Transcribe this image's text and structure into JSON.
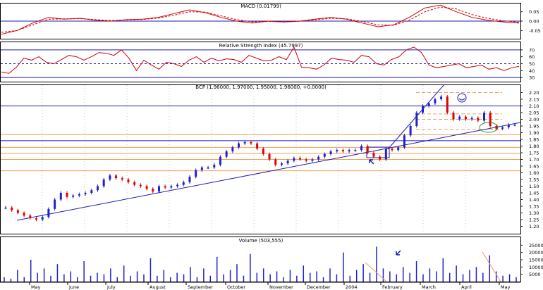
{
  "colors": {
    "up": "#2020d0",
    "down": "#e00000",
    "hline": "#1a1ab4",
    "fib": "#f0a050",
    "grid": "#c8c8c8",
    "axis": "#000000",
    "dash": "#e8a060",
    "circle": "#2aa02a"
  },
  "chart_data": [
    {
      "type": "line",
      "title": "MACD (0.01799)",
      "ylim": [
        -0.09,
        0.09
      ],
      "y_ticks": [
        "0.05",
        "0.00",
        "-0.05"
      ],
      "y_tick_values": [
        0.05,
        0.0,
        -0.05
      ],
      "hlines": [
        0.0
      ],
      "series": [
        {
          "style": "solid",
          "values": [
            -0.07,
            -0.05,
            -0.01,
            0.02,
            0.01,
            0.015,
            0.005,
            0.0,
            0.008,
            0.01,
            0.02,
            0.04,
            0.06,
            0.045,
            0.02,
            0.0,
            -0.01,
            0.0,
            -0.005,
            0.0,
            0.01,
            0.02,
            0.01,
            -0.01,
            -0.03,
            -0.02,
            0.02,
            0.07,
            0.085,
            0.05,
            0.02,
            0.005,
            -0.005,
            -0.01
          ]
        },
        {
          "style": "dashed",
          "values": [
            -0.06,
            -0.05,
            -0.02,
            0.01,
            0.012,
            0.013,
            0.008,
            0.003,
            0.006,
            0.009,
            0.016,
            0.032,
            0.05,
            0.048,
            0.028,
            0.008,
            -0.004,
            -0.002,
            -0.004,
            -0.001,
            0.006,
            0.015,
            0.012,
            -0.002,
            -0.02,
            -0.022,
            0.005,
            0.05,
            0.075,
            0.065,
            0.035,
            0.015,
            0.002,
            -0.006
          ]
        }
      ]
    },
    {
      "type": "line",
      "title": "Relative Strength Index (45.7997)",
      "ylim": [
        25,
        80
      ],
      "y_ticks": [
        "70",
        "60",
        "50",
        "40",
        "30"
      ],
      "y_tick_values": [
        70,
        60,
        50,
        40,
        30
      ],
      "hlines": [
        70,
        30
      ],
      "dashed_hlines": [
        50
      ],
      "series": [
        {
          "style": "solid",
          "values": [
            38,
            36,
            45,
            58,
            55,
            60,
            52,
            50,
            56,
            62,
            60,
            55,
            60,
            66,
            65,
            62,
            70,
            58,
            40,
            55,
            48,
            42,
            52,
            50,
            46,
            55,
            60,
            52,
            58,
            54,
            57,
            56,
            52,
            62,
            58,
            54,
            55,
            60,
            56,
            74,
            45,
            44,
            42,
            48,
            58,
            56,
            55,
            52,
            62,
            60,
            50,
            48,
            56,
            60,
            70,
            74,
            66,
            48,
            44,
            46,
            48,
            50,
            44,
            46,
            48,
            42,
            44,
            40,
            44,
            46
          ]
        }
      ]
    },
    {
      "type": "candlestick",
      "title": "BCP (1.96000, 1.97000, 1.95000, 1.96000, +0.0000)",
      "ylim": [
        1.15,
        2.25
      ],
      "y_ticks": [
        "2.20",
        "2.15",
        "2.10",
        "2.05",
        "2.00",
        "1.95",
        "1.90",
        "1.85",
        "1.80",
        "1.75",
        "1.70",
        "1.65",
        "1.60",
        "1.55",
        "1.50",
        "1.45",
        "1.40",
        "1.35",
        "1.30",
        "1.25",
        "1.20"
      ],
      "y_tick_values": [
        2.2,
        2.15,
        2.1,
        2.05,
        2.0,
        1.95,
        1.9,
        1.85,
        1.8,
        1.75,
        1.7,
        1.65,
        1.6,
        1.55,
        1.5,
        1.45,
        1.4,
        1.35,
        1.3,
        1.25,
        1.2
      ],
      "support_lines": [
        2.1,
        1.84
      ],
      "fib_lines": [
        1.885,
        1.79,
        1.745,
        1.7,
        1.615
      ],
      "dashed_lines": [
        2.2,
        2.04,
        2.0,
        1.925
      ],
      "closes": [
        1.34,
        1.32,
        1.3,
        1.28,
        1.26,
        1.25,
        1.27,
        1.33,
        1.4,
        1.45,
        1.42,
        1.43,
        1.44,
        1.45,
        1.47,
        1.5,
        1.55,
        1.58,
        1.56,
        1.55,
        1.53,
        1.51,
        1.5,
        1.48,
        1.46,
        1.5,
        1.49,
        1.5,
        1.51,
        1.53,
        1.57,
        1.62,
        1.64,
        1.64,
        1.66,
        1.72,
        1.76,
        1.79,
        1.82,
        1.83,
        1.82,
        1.78,
        1.74,
        1.7,
        1.66,
        1.67,
        1.69,
        1.71,
        1.7,
        1.69,
        1.7,
        1.72,
        1.74,
        1.76,
        1.77,
        1.76,
        1.77,
        1.77,
        1.8,
        1.75,
        1.72,
        1.7,
        1.78,
        1.77,
        1.79,
        1.88,
        1.95,
        2.05,
        2.1,
        2.12,
        2.15,
        2.17,
        2.05,
        2.0,
        2.02,
        2.0,
        2.01,
        1.99,
        2.05,
        1.95,
        1.93,
        1.94,
        1.96,
        1.96
      ]
    },
    {
      "type": "bar",
      "title": "Volume (503,555)",
      "ylim": [
        0,
        30000
      ],
      "y_ticks": [
        "25000",
        "20000",
        "15000",
        "10000",
        "5000"
      ],
      "y_tick_values": [
        25000,
        20000,
        15000,
        10000,
        5000
      ],
      "values": [
        3000,
        2000,
        8000,
        3000,
        15000,
        6000,
        9000,
        4000,
        12000,
        5000,
        7000,
        3000,
        14000,
        4000,
        6000,
        5000,
        9000,
        3000,
        11000,
        4000,
        7000,
        5000,
        16000,
        4000,
        8000,
        3000,
        6000,
        5000,
        10000,
        3000,
        9000,
        4000,
        17000,
        5000,
        8000,
        12000,
        4000,
        19000,
        6000,
        9000,
        5000,
        7000,
        3000,
        8000,
        4000,
        11000,
        6000,
        7000,
        3000,
        9000,
        5000,
        20000,
        4000,
        8000,
        12000,
        6000,
        24000,
        9000,
        7000,
        5000,
        10000,
        6000,
        14000,
        5000,
        9000,
        7000,
        16000,
        6000,
        11000,
        5000,
        8000,
        10000,
        6000,
        18000,
        7000,
        4000,
        5000,
        3000
      ],
      "x_labels": [
        "May",
        "June",
        "July",
        "August",
        "September",
        "October",
        "November",
        "December",
        "2004",
        "February",
        "March",
        "April",
        "May"
      ]
    }
  ]
}
